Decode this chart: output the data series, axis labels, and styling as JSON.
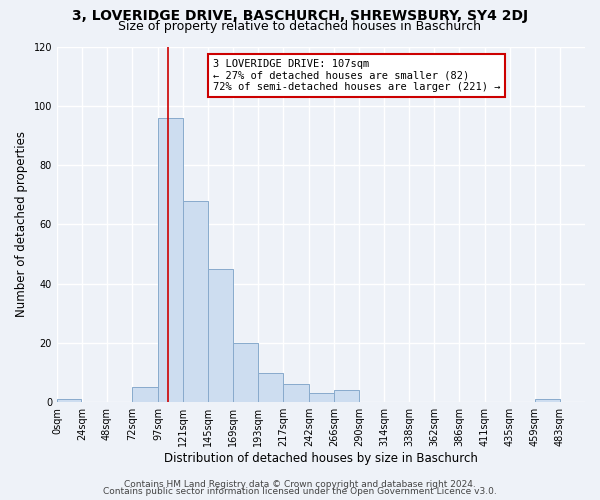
{
  "title": "3, LOVERIDGE DRIVE, BASCHURCH, SHREWSBURY, SY4 2DJ",
  "subtitle": "Size of property relative to detached houses in Baschurch",
  "xlabel": "Distribution of detached houses by size in Baschurch",
  "ylabel": "Number of detached properties",
  "bar_color": "#cdddf0",
  "bar_edge_color": "#88aacc",
  "bin_edges": [
    0,
    24,
    48,
    72,
    97,
    121,
    145,
    169,
    193,
    217,
    242,
    266,
    290,
    314,
    338,
    362,
    386,
    411,
    435,
    459,
    483,
    507
  ],
  "bin_labels": [
    "0sqm",
    "24sqm",
    "48sqm",
    "72sqm",
    "97sqm",
    "121sqm",
    "145sqm",
    "169sqm",
    "193sqm",
    "217sqm",
    "242sqm",
    "266sqm",
    "290sqm",
    "314sqm",
    "338sqm",
    "362sqm",
    "386sqm",
    "411sqm",
    "435sqm",
    "459sqm",
    "483sqm"
  ],
  "counts": [
    1,
    0,
    0,
    5,
    96,
    68,
    45,
    20,
    10,
    6,
    3,
    4,
    0,
    0,
    0,
    0,
    0,
    0,
    0,
    1,
    0
  ],
  "ylim": [
    0,
    120
  ],
  "yticks": [
    0,
    20,
    40,
    60,
    80,
    100,
    120
  ],
  "property_line_x": 107,
  "annotation_title": "3 LOVERIDGE DRIVE: 107sqm",
  "annotation_line1": "← 27% of detached houses are smaller (82)",
  "annotation_line2": "72% of semi-detached houses are larger (221) →",
  "annotation_box_color": "#ffffff",
  "annotation_box_edge": "#cc0000",
  "property_line_color": "#cc0000",
  "footer1": "Contains HM Land Registry data © Crown copyright and database right 2024.",
  "footer2": "Contains public sector information licensed under the Open Government Licence v3.0.",
  "background_color": "#eef2f8",
  "plot_bg_color": "#eef2f8",
  "grid_color": "#ffffff",
  "title_fontsize": 10,
  "subtitle_fontsize": 9,
  "tick_label_fontsize": 7,
  "axis_label_fontsize": 8.5,
  "footer_fontsize": 6.5
}
